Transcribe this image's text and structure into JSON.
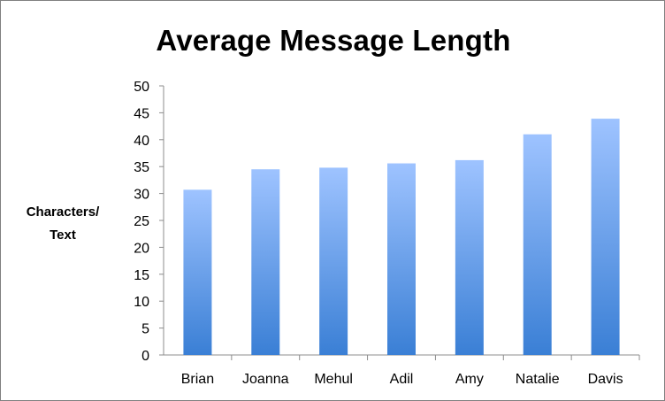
{
  "chart_data": {
    "type": "bar",
    "title": "Average Message Length",
    "ylabel_lines": [
      "Characters/",
      "Text"
    ],
    "xlabel": "",
    "categories": [
      "Brian",
      "Joanna",
      "Mehul",
      "Adil",
      "Amy",
      "Natalie",
      "Davis"
    ],
    "values": [
      30.7,
      34.5,
      34.8,
      35.6,
      36.2,
      41.0,
      43.9
    ],
    "ylim": [
      0,
      50
    ],
    "yticks": [
      0,
      5,
      10,
      15,
      20,
      25,
      30,
      35,
      40,
      45,
      50
    ],
    "grid": false,
    "legend": "none",
    "bar_color_top": "#9ec3ff",
    "bar_color_bottom": "#3a7fd5"
  }
}
